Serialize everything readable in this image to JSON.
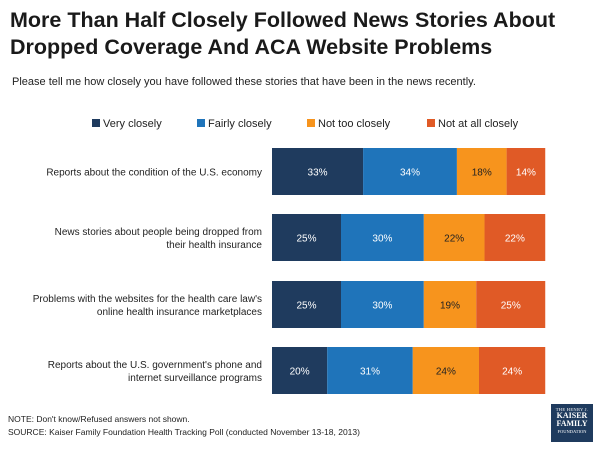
{
  "title": "More Than Half Closely Followed News Stories About Dropped Coverage And ACA Website Problems",
  "subtitle": "Please tell me how closely you have followed these stories that have been in the news recently.",
  "note": "NOTE: Don't know/Refused answers not shown.",
  "source": "SOURCE: Kaiser Family Foundation Health Tracking Poll (conducted November 13-18, 2013)",
  "logo": {
    "line1": "THE HENRY J.",
    "line2": "KAISER",
    "line3": "FAMILY",
    "line4": "FOUNDATION"
  },
  "chart_data": {
    "type": "bar",
    "orientation": "horizontal-stacked",
    "categories": [
      [
        "Reports about the condition of the U.S. economy"
      ],
      [
        "News stories about people being dropped from",
        "their health insurance"
      ],
      [
        "Problems with the websites for the health care law's",
        "online health insurance marketplaces"
      ],
      [
        "Reports about the U.S. government's phone and",
        "internet surveillance programs"
      ]
    ],
    "series": [
      {
        "name": "Very closely",
        "color": "#1f3b5e",
        "values": [
          33,
          25,
          25,
          20
        ]
      },
      {
        "name": "Fairly closely",
        "color": "#1f74ba",
        "values": [
          34,
          30,
          30,
          31
        ]
      },
      {
        "name": "Not too closely",
        "color": "#f7941d",
        "values": [
          18,
          22,
          19,
          24
        ]
      },
      {
        "name": "Not at all closely",
        "color": "#e05a26",
        "values": [
          14,
          22,
          25,
          24
        ]
      }
    ],
    "xlim": [
      0,
      100
    ],
    "legend": "top",
    "title": "More Than Half Closely Followed News Stories About Dropped Coverage And ACA Website Problems"
  }
}
